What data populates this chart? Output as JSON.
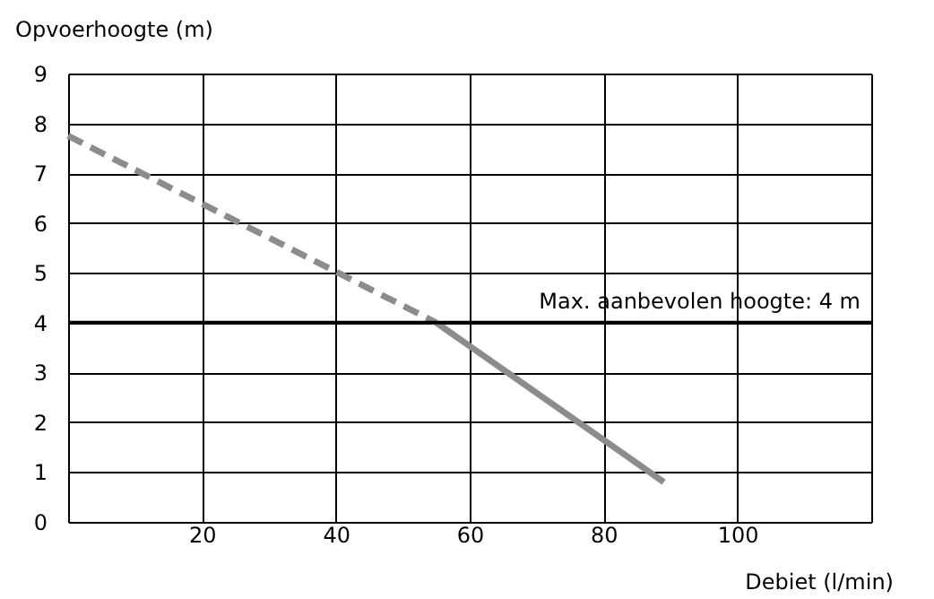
{
  "chart_data": {
    "type": "line",
    "xlabel": "Debiet (l/min)",
    "ylabel": "Opvoerhoogte (m)",
    "xlim": [
      0,
      120
    ],
    "xticks": [
      {
        "value": 0,
        "label": null
      },
      20,
      40,
      60,
      80,
      100,
      {
        "value": 120,
        "label": null
      }
    ],
    "ylim": [
      0,
      9
    ],
    "yticks": [
      0,
      1,
      2,
      3,
      4,
      5,
      6,
      7,
      8,
      9
    ],
    "grid": true,
    "series": [
      {
        "color": "#8c8c8c",
        "x": [
          0,
          55
        ],
        "values": [
          7.75,
          4
        ],
        "line_style": "dashed"
      },
      {
        "color": "#8c8c8c",
        "x": [
          55,
          89
        ],
        "values": [
          4,
          0.8
        ],
        "line_style": "solid"
      }
    ],
    "ref_lines": [
      {
        "axis": "y",
        "value": 4,
        "label": "Max. aanbevolen hoogte: 4 m",
        "color": "#000000"
      }
    ]
  }
}
